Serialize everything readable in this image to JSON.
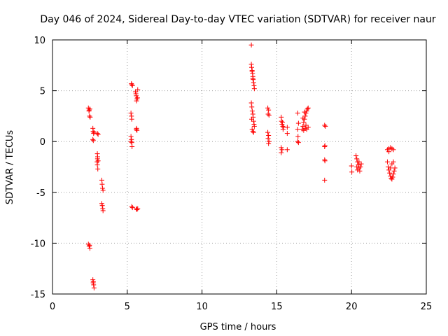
{
  "chart_data": {
    "type": "scatter",
    "title": "Day 046 of 2024, Sidereal Day-to-day VTEC variation (SDTVAR) for receiver naur",
    "xlabel": "GPS time / hours",
    "ylabel": "SDTVAR / TECUs",
    "xlim": [
      0,
      25
    ],
    "ylim": [
      -15,
      10
    ],
    "xticks": [
      0,
      5,
      10,
      15,
      20,
      25
    ],
    "yticks": [
      -15,
      -10,
      -5,
      0,
      5,
      10
    ],
    "grid": true,
    "marker": "+",
    "color": "#ff0000",
    "series": [
      {
        "name": "SDTVAR",
        "points": [
          [
            2.4,
            3.3
          ],
          [
            2.45,
            3.1
          ],
          [
            2.5,
            3.2
          ],
          [
            2.48,
            2.5
          ],
          [
            2.52,
            2.4
          ],
          [
            2.44,
            3.0
          ],
          [
            2.4,
            -10.1
          ],
          [
            2.45,
            -10.3
          ],
          [
            2.5,
            -10.5
          ],
          [
            2.48,
            -10.2
          ],
          [
            2.7,
            1.3
          ],
          [
            2.72,
            1.0
          ],
          [
            2.75,
            0.8
          ],
          [
            2.7,
            0.2
          ],
          [
            2.73,
            0.1
          ],
          [
            2.78,
            0.9
          ],
          [
            2.7,
            -13.6
          ],
          [
            2.73,
            -13.8
          ],
          [
            2.75,
            -14.1
          ],
          [
            2.78,
            -14.4
          ],
          [
            2.72,
            -13.9
          ],
          [
            3.0,
            0.8
          ],
          [
            3.05,
            0.7
          ],
          [
            3.0,
            -1.2
          ],
          [
            3.02,
            -1.5
          ],
          [
            3.05,
            -1.9
          ],
          [
            3.0,
            -2.3
          ],
          [
            3.03,
            -2.7
          ],
          [
            3.01,
            -1.7
          ],
          [
            2.98,
            -2.0
          ],
          [
            3.3,
            -3.8
          ],
          [
            3.32,
            -4.2
          ],
          [
            3.35,
            -4.6
          ],
          [
            3.38,
            -4.8
          ],
          [
            3.3,
            -6.1
          ],
          [
            3.33,
            -6.3
          ],
          [
            3.36,
            -6.6
          ],
          [
            3.38,
            -6.8
          ],
          [
            5.3,
            5.6
          ],
          [
            5.35,
            5.5
          ],
          [
            5.28,
            5.7
          ],
          [
            5.25,
            2.8
          ],
          [
            5.28,
            2.5
          ],
          [
            5.3,
            2.2
          ],
          [
            5.25,
            0.5
          ],
          [
            5.28,
            0.2
          ],
          [
            5.3,
            -0.1
          ],
          [
            5.32,
            -0.5
          ],
          [
            5.25,
            0.0
          ],
          [
            5.3,
            -6.4
          ],
          [
            5.35,
            -6.5
          ],
          [
            5.55,
            4.9
          ],
          [
            5.6,
            4.5
          ],
          [
            5.65,
            4.2
          ],
          [
            5.62,
            4.0
          ],
          [
            5.58,
            4.7
          ],
          [
            5.7,
            5.1
          ],
          [
            5.68,
            4.3
          ],
          [
            5.6,
            1.2
          ],
          [
            5.65,
            1.1
          ],
          [
            5.62,
            1.3
          ],
          [
            5.6,
            -6.6
          ],
          [
            5.65,
            -6.7
          ],
          [
            5.7,
            -6.6
          ],
          [
            13.3,
            9.5
          ],
          [
            13.3,
            7.6
          ],
          [
            13.32,
            7.3
          ],
          [
            13.35,
            7.0
          ],
          [
            13.38,
            6.7
          ],
          [
            13.4,
            6.4
          ],
          [
            13.42,
            6.1
          ],
          [
            13.45,
            5.8
          ],
          [
            13.48,
            5.5
          ],
          [
            13.5,
            5.2
          ],
          [
            13.35,
            6.9
          ],
          [
            13.4,
            6.2
          ],
          [
            13.3,
            3.8
          ],
          [
            13.33,
            3.4
          ],
          [
            13.36,
            3.0
          ],
          [
            13.4,
            2.7
          ],
          [
            13.42,
            2.4
          ],
          [
            13.45,
            2.0
          ],
          [
            13.48,
            1.7
          ],
          [
            13.5,
            1.5
          ],
          [
            13.35,
            1.2
          ],
          [
            13.4,
            1.0
          ],
          [
            13.45,
            0.9
          ],
          [
            13.32,
            2.2
          ],
          [
            14.4,
            3.3
          ],
          [
            14.45,
            3.1
          ],
          [
            14.42,
            2.7
          ],
          [
            14.48,
            2.6
          ],
          [
            14.4,
            0.9
          ],
          [
            14.45,
            0.6
          ],
          [
            14.42,
            0.3
          ],
          [
            14.48,
            0.0
          ],
          [
            14.45,
            -0.2
          ],
          [
            15.3,
            2.4
          ],
          [
            15.32,
            2.0
          ],
          [
            15.35,
            1.7
          ],
          [
            15.4,
            1.5
          ],
          [
            15.42,
            1.2
          ],
          [
            15.45,
            1.4
          ],
          [
            15.38,
            1.9
          ],
          [
            15.3,
            -0.6
          ],
          [
            15.35,
            -0.8
          ],
          [
            15.3,
            -1.1
          ],
          [
            15.7,
            1.4
          ],
          [
            15.7,
            0.8
          ],
          [
            15.7,
            -0.8
          ],
          [
            16.4,
            2.8
          ],
          [
            16.45,
            1.8
          ],
          [
            16.4,
            1.2
          ],
          [
            16.42,
            0.5
          ],
          [
            16.45,
            -0.1
          ],
          [
            16.4,
            0.0
          ],
          [
            16.7,
            1.2
          ],
          [
            16.75,
            1.5
          ],
          [
            16.8,
            1.9
          ],
          [
            16.85,
            2.2
          ],
          [
            16.9,
            2.5
          ],
          [
            16.95,
            2.8
          ],
          [
            17.0,
            3.0
          ],
          [
            17.05,
            3.2
          ],
          [
            17.1,
            3.3
          ],
          [
            16.8,
            1.1
          ],
          [
            16.9,
            1.3
          ],
          [
            17.0,
            1.2
          ],
          [
            17.1,
            1.4
          ],
          [
            16.75,
            2.3
          ],
          [
            16.85,
            2.9
          ],
          [
            16.95,
            1.6
          ],
          [
            18.2,
            1.6
          ],
          [
            18.25,
            1.5
          ],
          [
            18.2,
            -0.5
          ],
          [
            18.22,
            -0.4
          ],
          [
            18.2,
            -1.8
          ],
          [
            18.22,
            -1.9
          ],
          [
            18.2,
            -3.8
          ],
          [
            20.0,
            -2.4
          ],
          [
            20.02,
            -3.0
          ],
          [
            20.3,
            -1.4
          ],
          [
            20.35,
            -1.7
          ],
          [
            20.4,
            -2.0
          ],
          [
            20.45,
            -2.3
          ],
          [
            20.5,
            -2.6
          ],
          [
            20.55,
            -2.9
          ],
          [
            20.6,
            -2.5
          ],
          [
            20.65,
            -2.2
          ],
          [
            20.4,
            -2.8
          ],
          [
            20.5,
            -2.0
          ],
          [
            20.35,
            -2.5
          ],
          [
            22.4,
            -0.8
          ],
          [
            22.5,
            -0.7
          ],
          [
            22.6,
            -0.6
          ],
          [
            22.7,
            -0.7
          ],
          [
            22.8,
            -0.8
          ],
          [
            22.4,
            -2.0
          ],
          [
            22.45,
            -2.5
          ],
          [
            22.5,
            -2.8
          ],
          [
            22.55,
            -3.1
          ],
          [
            22.6,
            -3.4
          ],
          [
            22.65,
            -3.6
          ],
          [
            22.7,
            -3.7
          ],
          [
            22.75,
            -3.5
          ],
          [
            22.8,
            -3.2
          ],
          [
            22.85,
            -2.9
          ],
          [
            22.9,
            -2.6
          ],
          [
            22.7,
            -2.2
          ],
          [
            22.8,
            -2.0
          ],
          [
            22.6,
            -2.6
          ],
          [
            22.5,
            -1.0
          ]
        ]
      }
    ]
  }
}
